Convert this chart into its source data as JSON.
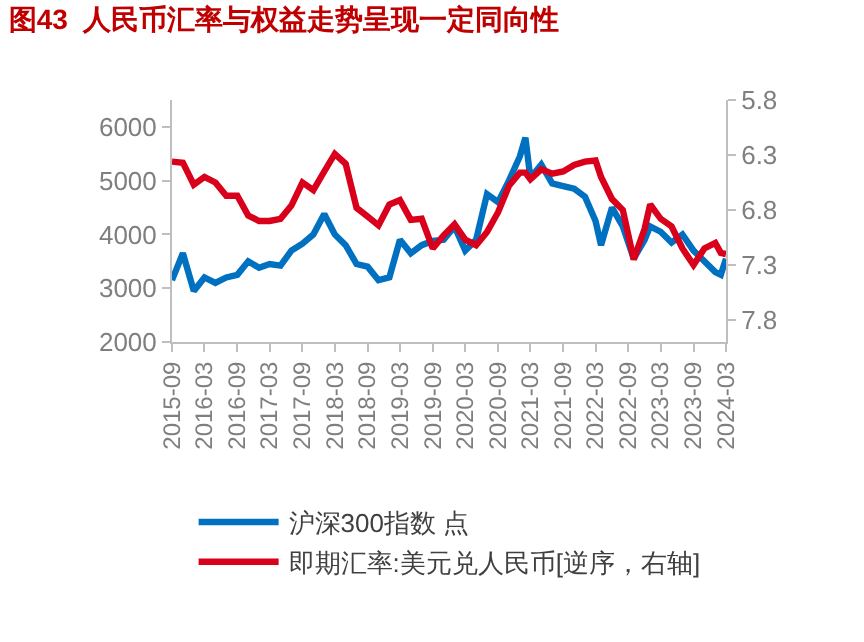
{
  "chart_data": {
    "type": "line",
    "title": "图43  人民币汇率与权益走势呈现一定同向性",
    "x": [
      "2015-09",
      "2015-11",
      "2016-01",
      "2016-03",
      "2016-05",
      "2016-07",
      "2016-09",
      "2016-11",
      "2017-01",
      "2017-03",
      "2017-05",
      "2017-07",
      "2017-09",
      "2017-11",
      "2018-01",
      "2018-03",
      "2018-05",
      "2018-07",
      "2018-09",
      "2018-11",
      "2019-01",
      "2019-03",
      "2019-05",
      "2019-07",
      "2019-09",
      "2019-11",
      "2020-01",
      "2020-03",
      "2020-05",
      "2020-07",
      "2020-09",
      "2020-11",
      "2021-01",
      "2021-02",
      "2021-03",
      "2021-05",
      "2021-07",
      "2021-09",
      "2021-11",
      "2022-01",
      "2022-03",
      "2022-04",
      "2022-06",
      "2022-08",
      "2022-10",
      "2022-12",
      "2023-01",
      "2023-03",
      "2023-05",
      "2023-07",
      "2023-09",
      "2023-11",
      "2024-01",
      "2024-02",
      "2024-03"
    ],
    "series": [
      {
        "name": "沪深300指数 点",
        "color": "#0070c0",
        "values": [
          3150,
          3650,
          2950,
          3200,
          3100,
          3200,
          3250,
          3500,
          3380,
          3450,
          3420,
          3700,
          3830,
          4000,
          4380,
          4000,
          3800,
          3450,
          3400,
          3150,
          3200,
          3900,
          3650,
          3800,
          3880,
          3900,
          4150,
          3700,
          3900,
          4750,
          4600,
          5000,
          5450,
          5800,
          5050,
          5300,
          4950,
          4900,
          4850,
          4700,
          4250,
          3800,
          4500,
          4150,
          3550,
          3900,
          4150,
          4050,
          3850,
          4000,
          3700,
          3500,
          3300,
          3250,
          3550
        ]
      },
      {
        "name": "即期汇率:美元兑人民币[逆序，右轴]",
        "color": "#d9001b",
        "axis": "y2",
        "values": [
          6.36,
          6.37,
          6.57,
          6.5,
          6.55,
          6.67,
          6.67,
          6.85,
          6.9,
          6.9,
          6.88,
          6.76,
          6.55,
          6.62,
          6.45,
          6.29,
          6.38,
          6.78,
          6.86,
          6.94,
          6.75,
          6.71,
          6.89,
          6.88,
          7.15,
          7.03,
          6.93,
          7.07,
          7.12,
          7.0,
          6.82,
          6.58,
          6.46,
          6.46,
          6.52,
          6.43,
          6.47,
          6.45,
          6.39,
          6.36,
          6.35,
          6.5,
          6.7,
          6.8,
          7.25,
          6.97,
          6.75,
          6.88,
          6.95,
          7.15,
          7.3,
          7.15,
          7.1,
          7.19,
          7.2
        ]
      }
    ],
    "xlim": [
      "2015-09",
      "2024-03"
    ],
    "xticks": [
      "2015-09",
      "2016-03",
      "2016-09",
      "2017-03",
      "2017-09",
      "2018-03",
      "2018-09",
      "2019-03",
      "2019-09",
      "2020-03",
      "2020-09",
      "2021-03",
      "2021-09",
      "2022-03",
      "2022-09",
      "2023-03",
      "2023-09",
      "2024-03"
    ],
    "ylim": [
      2000,
      6500
    ],
    "yticks": [
      2000,
      3000,
      4000,
      5000,
      6000
    ],
    "y2lim": [
      8.0,
      5.8
    ],
    "y2ticks": [
      5.8,
      6.3,
      6.8,
      7.3,
      7.8
    ],
    "legend": "bottom",
    "marker": "none",
    "line_style": "solid"
  }
}
